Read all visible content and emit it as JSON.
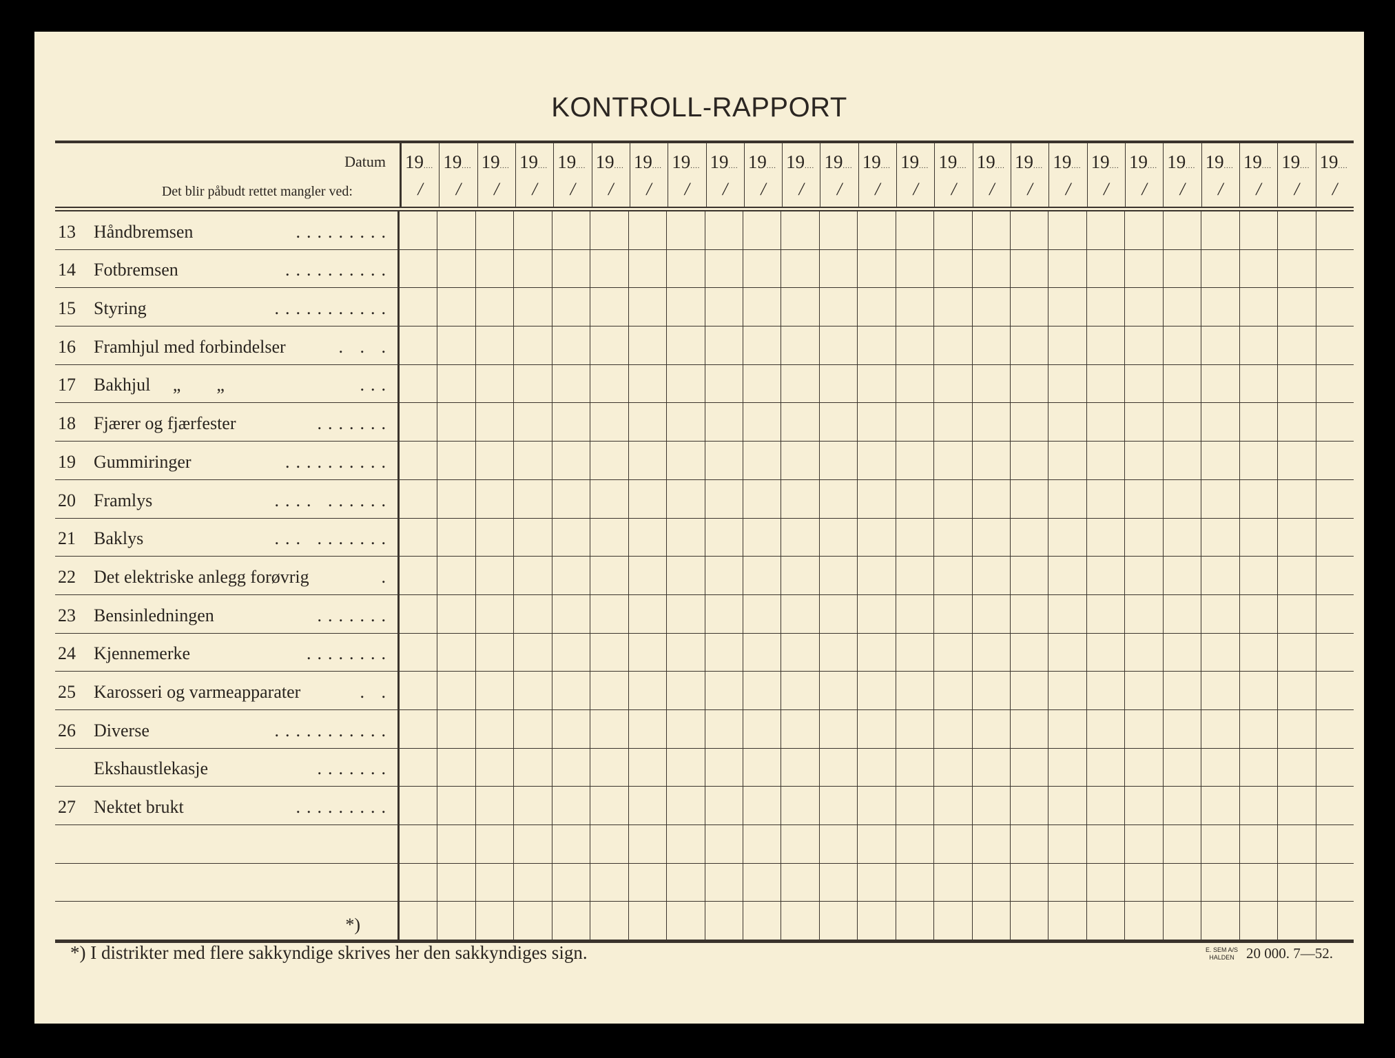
{
  "title": "KONTROLL-RAPPORT",
  "header": {
    "datum_label": "Datum",
    "subtitle": "Det blir påbudt rettet mangler ved:",
    "date_prefix": "19",
    "date_dots": "....",
    "date_slash": "/",
    "columns": 25
  },
  "items": [
    {
      "num": "13",
      "text": "Håndbremsen",
      "dots": "........."
    },
    {
      "num": "14",
      "text": "Fotbremsen",
      "dots": ".........."
    },
    {
      "num": "15",
      "text": "Styring",
      "dots": "..........."
    },
    {
      "num": "16",
      "text": "Framhjul med forbindelser",
      "dots": ". . ."
    },
    {
      "num": "17",
      "text": "Bakhjul     „        „",
      "dots": "..."
    },
    {
      "num": "18",
      "text": "Fjærer og fjærfester",
      "dots": "......."
    },
    {
      "num": "19",
      "text": "Gummiringer",
      "dots": ".........."
    },
    {
      "num": "20",
      "text": "Framlys",
      "dots": "....    ......"
    },
    {
      "num": "21",
      "text": "Baklys",
      "dots": "...    ......."
    },
    {
      "num": "22",
      "text": "Det elektriske anlegg forøvrig",
      "dots": "."
    },
    {
      "num": "23",
      "text": "Bensinledningen",
      "dots": "......."
    },
    {
      "num": "24",
      "text": "Kjennemerke",
      "dots": "........"
    },
    {
      "num": "25",
      "text": "Karosseri og varmeapparater",
      "dots": ". ."
    },
    {
      "num": "26",
      "text": "Diverse",
      "dots": "..........."
    },
    {
      "num": "",
      "text": "Ekshaustlekasje",
      "dots": "......."
    },
    {
      "num": "27",
      "text": "Nektet brukt",
      "dots": "........."
    },
    {
      "num": "",
      "text": "",
      "dots": ""
    },
    {
      "num": "",
      "text": "",
      "dots": ""
    },
    {
      "num": "",
      "text": "",
      "dots": "",
      "star": "*)"
    }
  ],
  "footer": {
    "note": "*)  I distrikter med flere sakkyndige skrives her den sakkyndiges sign.",
    "printer_line1": "E. SEM A/S",
    "printer_line2": "HALDEN",
    "print_run": "20 000.  7—52."
  }
}
